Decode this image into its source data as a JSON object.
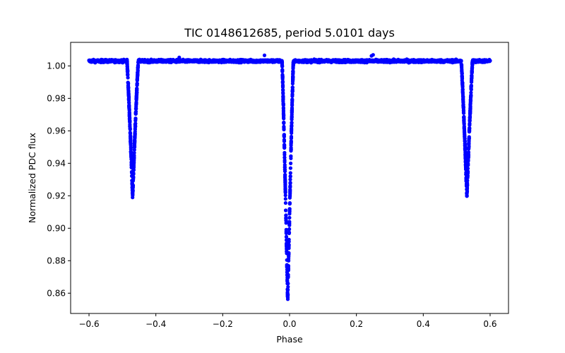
{
  "chart_data": {
    "type": "scatter",
    "title": "TIC 0148612685, period 5.0101 days",
    "xlabel": "Phase",
    "ylabel": "Normalized PDC flux",
    "xlim": [
      -0.655,
      0.655
    ],
    "ylim": [
      0.8475,
      1.0145
    ],
    "xticks": [
      -0.6,
      -0.4,
      -0.2,
      0.0,
      0.2,
      0.4,
      0.6
    ],
    "xtick_labels": [
      "−0.6",
      "−0.4",
      "−0.2",
      "0.0",
      "0.2",
      "0.4",
      "0.6"
    ],
    "yticks": [
      0.86,
      0.88,
      0.9,
      0.92,
      0.94,
      0.96,
      0.98,
      1.0
    ],
    "ytick_labels": [
      "0.86",
      "0.88",
      "0.90",
      "0.92",
      "0.94",
      "0.96",
      "0.98",
      "1.00"
    ],
    "marker_color": "#0000ff",
    "series": [
      {
        "name": "flux",
        "baseline_flux": 1.003,
        "phase_range": [
          -0.6,
          0.6
        ],
        "eclipses": [
          {
            "kind": "secondary",
            "center": -0.4695,
            "min_flux": 0.92,
            "half_width": 0.017
          },
          {
            "kind": "primary",
            "center": -0.0055,
            "min_flux": 0.855,
            "half_width": 0.017
          },
          {
            "kind": "secondary",
            "center": 0.5305,
            "min_flux": 0.92,
            "half_width": 0.017
          }
        ]
      }
    ]
  }
}
